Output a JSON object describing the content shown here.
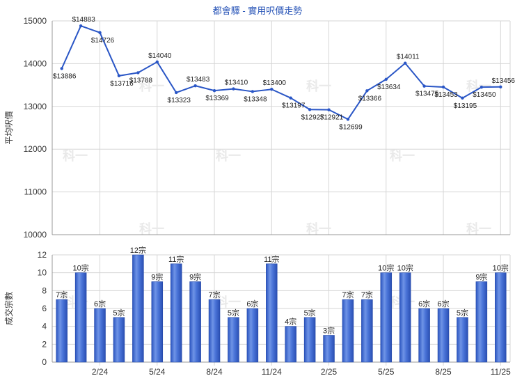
{
  "chart_data": [
    {
      "type": "line",
      "title": "都會驛 - 實用呎價走勢",
      "ylabel": "平均呎價",
      "ylim": [
        10000,
        15000
      ],
      "yticks": [
        "10000",
        "11000",
        "12000",
        "13000",
        "14000",
        "15000"
      ],
      "grid": true,
      "color": "#2a56c6",
      "series": [
        {
          "values": [
            13886,
            14883,
            14726,
            13716,
            13788,
            14040,
            13323,
            13483,
            13369,
            13410,
            13348,
            13400,
            13197,
            12927,
            12921,
            12699,
            13366,
            13634,
            14011,
            13475,
            13453,
            13195,
            13450,
            13456
          ]
        }
      ],
      "point_labels": [
        "$13886",
        "$14883",
        "$14726",
        "$13716",
        "$13788",
        "$14040",
        "$13323",
        "$13483",
        "$13369",
        "$13410",
        "$13348",
        "$13400",
        "$13197",
        "$12927",
        "$12921",
        "$12699",
        "$13366",
        "$13634",
        "$14011",
        "$13475",
        "$13453",
        "$13195",
        "$13450",
        "$13456"
      ]
    },
    {
      "type": "bar",
      "ylabel": "成交宗數",
      "ylim": [
        0,
        12
      ],
      "yticks": [
        "0",
        "2",
        "4",
        "6",
        "8",
        "10",
        "12"
      ],
      "grid": true,
      "color": "#3a67cf",
      "values": [
        7,
        10,
        6,
        5,
        12,
        9,
        11,
        9,
        7,
        5,
        6,
        11,
        4,
        5,
        3,
        7,
        7,
        10,
        10,
        6,
        6,
        5,
        9,
        10
      ],
      "bar_labels": [
        "7宗",
        "10宗",
        "6宗",
        "5宗",
        "12宗",
        "9宗",
        "11宗",
        "9宗",
        "7宗",
        "5宗",
        "6宗",
        "11宗",
        "4宗",
        "5宗",
        "3宗",
        "7宗",
        "7宗",
        "10宗",
        "10宗",
        "6宗",
        "6宗",
        "5宗",
        "9宗",
        "10宗"
      ],
      "x_tick_labels": [
        {
          "index": 2,
          "label": "2/24"
        },
        {
          "index": 5,
          "label": "5/24"
        },
        {
          "index": 8,
          "label": "8/24"
        },
        {
          "index": 11,
          "label": "11/24"
        },
        {
          "index": 14,
          "label": "2/25"
        },
        {
          "index": 17,
          "label": "5/25"
        },
        {
          "index": 20,
          "label": "8/25"
        },
        {
          "index": 23,
          "label": "11/25"
        }
      ]
    }
  ],
  "watermark_text": "科一"
}
